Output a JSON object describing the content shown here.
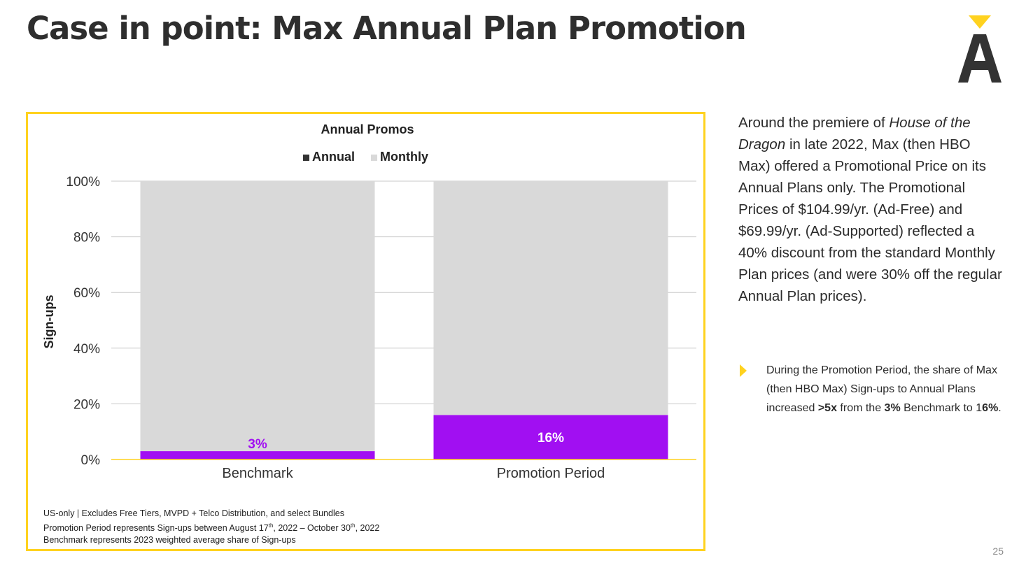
{
  "slide": {
    "title": "Case in point: Max Annual Plan Promotion",
    "page_number": "25"
  },
  "colors": {
    "accent_yellow": "#ffd21f",
    "annual": "#a10ff2",
    "monthly": "#d9d9d9",
    "logo": "#333333"
  },
  "chart_data": {
    "type": "bar",
    "stacked": true,
    "title": "Annual Promos",
    "ylabel": "Sign-ups",
    "xlabel": "",
    "ylim": [
      0,
      100
    ],
    "yticks": [
      "0%",
      "20%",
      "40%",
      "60%",
      "80%",
      "100%"
    ],
    "categories": [
      "Benchmark",
      "Promotion Period"
    ],
    "series": [
      {
        "name": "Annual",
        "values": [
          3,
          16
        ],
        "data_labels": [
          "3%",
          "16%"
        ]
      },
      {
        "name": "Monthly",
        "values": [
          97,
          84
        ]
      }
    ],
    "legend_position": "top",
    "grid": true
  },
  "footnotes": {
    "line1": "US-only | Excludes Free Tiers, MVPD + Telco Distribution, and select Bundles",
    "line2_a": "Promotion Period represents Sign-ups between August 17",
    "line2_sup1": "th",
    "line2_b": ", 2022 – October 30",
    "line2_sup2": "th",
    "line2_c": ", 2022",
    "line3": "Benchmark represents 2023 weighted average share of Sign-ups"
  },
  "side_text": {
    "p1": "Around the premiere of ",
    "show_title": "House of the Dragon",
    "p2": " in late 2022, Max (then HBO Max) offered a Promotional Price on its Annual Plans only. The Promotional Prices of $104.99/yr. (Ad-Free) and $69.99/yr. (Ad-Supported) reflected a 40% discount from the standard Monthly Plan prices (and were 30% off the regular Annual Plan prices)."
  },
  "bullet": {
    "part1": "During the Promotion Period, the share of Max (then HBO Max) Sign-ups to Annual Plans increased ",
    "bold1": ">5x",
    "part2": " from the ",
    "bold2": "3%",
    "part3": " Benchmark to 1",
    "bold3": "6%",
    "part4": "."
  }
}
